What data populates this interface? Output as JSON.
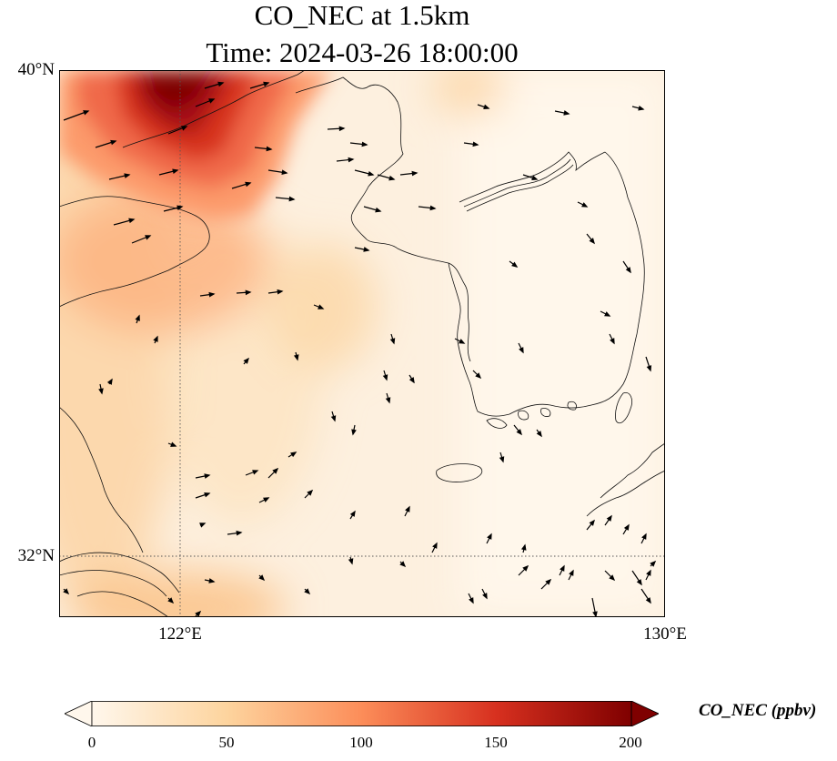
{
  "title": {
    "line1": "CO_NEC at 1.5km",
    "line2": "Time: 2024-03-26 18:00:00"
  },
  "map": {
    "lat_labels": [
      "40°N",
      "32°N"
    ],
    "lon_labels": [
      "122°E",
      "130°E"
    ],
    "extent": {
      "lon": [
        120,
        130
      ],
      "lat": [
        31,
        40
      ]
    },
    "gridlines": {
      "lon": [
        122
      ],
      "lat": [
        32
      ]
    },
    "features": [
      "coastline",
      "wind-vectors",
      "co-concentration-field"
    ]
  },
  "colorbar": {
    "label": "CO_NEC (ppbv)",
    "ticks": [
      "0",
      "50",
      "100",
      "150",
      "200"
    ],
    "range": [
      0,
      200
    ],
    "colormap": "OrRd",
    "extend": "both",
    "colors": [
      "#fff7ec",
      "#fdd49e",
      "#fc8d59",
      "#d7301f",
      "#7f0000"
    ]
  }
}
